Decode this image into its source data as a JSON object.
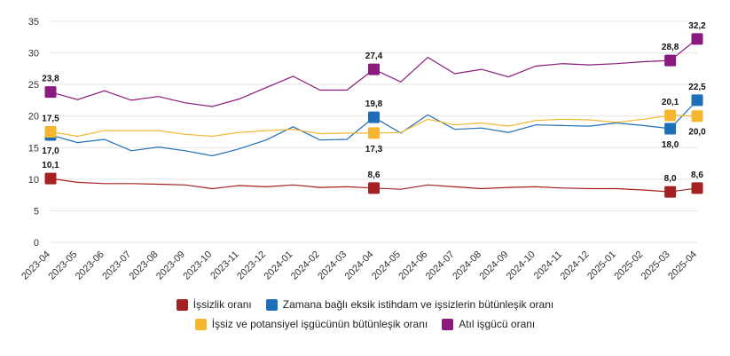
{
  "chart_data": {
    "type": "line",
    "x": [
      "2023-04",
      "2023-05",
      "2023-06",
      "2023-07",
      "2023-08",
      "2023-09",
      "2023-10",
      "2023-11",
      "2023-12",
      "2024-01",
      "2024-02",
      "2024-03",
      "2024-04",
      "2024-05",
      "2024-06",
      "2024-07",
      "2024-08",
      "2024-09",
      "2024-10",
      "2024-11",
      "2024-12",
      "2025-01",
      "2025-02",
      "2025-03",
      "2025-04"
    ],
    "ylim": [
      0,
      35
    ],
    "yticks": [
      0,
      5,
      10,
      15,
      20,
      25,
      30,
      35
    ],
    "grid": true,
    "legend_position": "bottom",
    "series": [
      {
        "name": "İşsizlik oranı",
        "color": "#a52020",
        "values": [
          10.1,
          9.5,
          9.3,
          9.3,
          9.2,
          9.1,
          8.5,
          9.0,
          8.8,
          9.1,
          8.7,
          8.8,
          8.6,
          8.4,
          9.1,
          8.8,
          8.5,
          8.7,
          8.8,
          8.6,
          8.5,
          8.5,
          8.3,
          8.0,
          8.6
        ],
        "labels": [
          {
            "i": 0,
            "text": "10,1",
            "pos": "above"
          },
          {
            "i": 12,
            "text": "8,6",
            "pos": "above"
          },
          {
            "i": 23,
            "text": "8,0",
            "pos": "above"
          },
          {
            "i": 24,
            "text": "8,6",
            "pos": "above"
          }
        ]
      },
      {
        "name": "Zamana bağlı eksik istihdam ve işsizlerin bütünleşik oranı",
        "color": "#1f6fb8",
        "values": [
          17.0,
          15.8,
          16.3,
          14.5,
          15.1,
          14.5,
          13.7,
          14.8,
          16.2,
          18.3,
          16.2,
          16.3,
          19.8,
          17.3,
          20.2,
          17.9,
          18.1,
          17.4,
          18.6,
          18.5,
          18.4,
          18.9,
          18.5,
          18.0,
          22.5
        ],
        "labels": [
          {
            "i": 0,
            "text": "17,0",
            "pos": "below"
          },
          {
            "i": 12,
            "text": "19,8",
            "pos": "above"
          },
          {
            "i": 23,
            "text": "18,0",
            "pos": "below"
          },
          {
            "i": 24,
            "text": "22,5",
            "pos": "above"
          }
        ]
      },
      {
        "name": "İşsiz ve potansiyel işgücünün bütünleşik oranı",
        "color": "#f5b730",
        "values": [
          17.5,
          16.8,
          17.7,
          17.7,
          17.7,
          17.1,
          16.8,
          17.4,
          17.7,
          17.9,
          17.2,
          17.3,
          17.3,
          17.4,
          19.5,
          18.6,
          18.9,
          18.4,
          19.3,
          19.5,
          19.4,
          19.0,
          19.5,
          20.1,
          20.0
        ],
        "labels": [
          {
            "i": 0,
            "text": "17,5",
            "pos": "above"
          },
          {
            "i": 12,
            "text": "17,3",
            "pos": "below"
          },
          {
            "i": 23,
            "text": "20,1",
            "pos": "above"
          },
          {
            "i": 24,
            "text": "20,0",
            "pos": "below"
          }
        ]
      },
      {
        "name": "Atıl işgücü oranı",
        "color": "#8b1a7e",
        "values": [
          23.8,
          22.6,
          24.0,
          22.5,
          23.1,
          22.1,
          21.5,
          22.7,
          24.5,
          26.3,
          24.1,
          24.1,
          27.4,
          25.4,
          29.3,
          26.7,
          27.4,
          26.2,
          27.9,
          28.3,
          28.1,
          28.3,
          28.6,
          28.8,
          32.2
        ],
        "labels": [
          {
            "i": 0,
            "text": "23,8",
            "pos": "above"
          },
          {
            "i": 12,
            "text": "27,4",
            "pos": "above"
          },
          {
            "i": 23,
            "text": "28,8",
            "pos": "above"
          },
          {
            "i": 24,
            "text": "32,2",
            "pos": "above"
          }
        ]
      }
    ]
  }
}
